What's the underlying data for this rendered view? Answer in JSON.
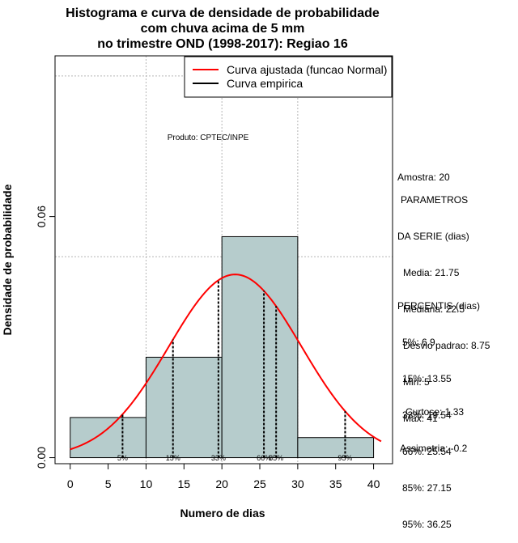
{
  "chart_data": {
    "type": "bar",
    "title_lines": [
      "Histograma e curva de densidade de probabilidade",
      "com chuva acima de 5 mm",
      "no trimestre OND (1998-2017): Regiao 16"
    ],
    "xlabel": "Numero de dias",
    "ylabel": "Densidade de probabilidade",
    "xlim": [
      -2,
      42.5
    ],
    "ylim": [
      -0.0015,
      0.1
    ],
    "xticks": [
      "0",
      "5",
      "10",
      "15",
      "20",
      "25",
      "30",
      "35",
      "40"
    ],
    "yticks": [
      "0.00",
      "0.06"
    ],
    "grid": true,
    "bins": [
      {
        "from": 0,
        "to": 10,
        "density": 0.01
      },
      {
        "from": 10,
        "to": 20,
        "density": 0.025
      },
      {
        "from": 20,
        "to": 30,
        "density": 0.055
      },
      {
        "from": 30,
        "to": 40,
        "density": 0.005
      }
    ],
    "normal_fit": {
      "mean": 21.75,
      "sd": 8.75,
      "x_from": 0,
      "x_to": 41
    },
    "percentile_lines": [
      {
        "label": "5%",
        "x": 6.9
      },
      {
        "label": "15%",
        "x": 13.55
      },
      {
        "label": "33%",
        "x": 19.54
      },
      {
        "label": "66%",
        "x": 25.54
      },
      {
        "label": "85%",
        "x": 27.15
      },
      {
        "label": "95%",
        "x": 36.25
      }
    ],
    "legend": {
      "position": "top-right",
      "entries": [
        {
          "label": "Curva ajustada (funcao Normal)",
          "color": "#ff0000"
        },
        {
          "label": "Curva empirica",
          "color": "#000000"
        }
      ]
    },
    "annotation": "Produto: CPTEC/INPE",
    "colors": {
      "bar_fill": "#b6cccc",
      "curve": "#ff0000"
    }
  },
  "side_panel": {
    "amostra": "Amostra: 20",
    "params_title_1": "PARAMETROS",
    "params_title_2": "DA SERIE (dias)",
    "media": "Media: 21.75",
    "mediana": "Mediana: 22.5",
    "desvio": "Desvio padrao: 8.75",
    "min": "Min: 5",
    "max": "Max: 41",
    "percentis_title": "PERCENTIS (dias)",
    "p5": "5%: 6.9",
    "p15": "15%: 13.55",
    "p33": "33%: 19.54",
    "p66": "66%: 25.54",
    "p85": "85%: 27.15",
    "p95": "95%: 36.25",
    "curtose": "Curtose: 1.33",
    "assimetria": "Assimetria: -0.2"
  }
}
